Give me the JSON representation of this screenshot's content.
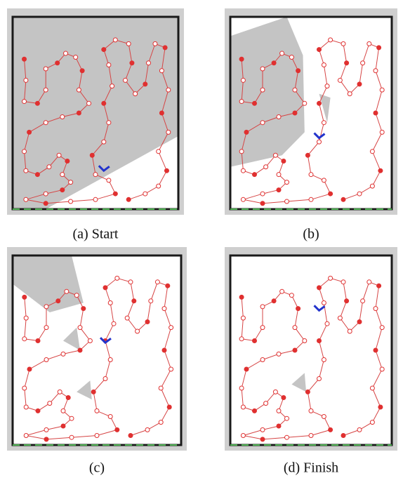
{
  "panels": [
    {
      "caption": "(a) Start"
    },
    {
      "caption": "(b)"
    },
    {
      "caption": "(c)"
    },
    {
      "caption": "(d) Finish"
    }
  ]
}
